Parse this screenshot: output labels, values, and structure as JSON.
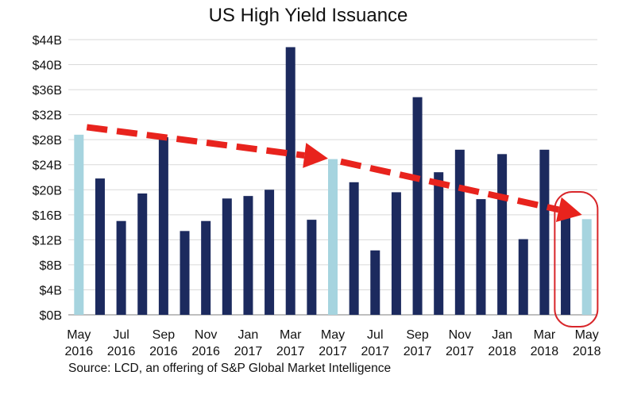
{
  "chart_data": {
    "type": "bar",
    "title": "US High Yield Issuance",
    "source": "Source: LCD, an offering of S&P Global Market Intelligence",
    "y_ticks": [
      "$0B",
      "$4B",
      "$8B",
      "$12B",
      "$16B",
      "$20B",
      "$24B",
      "$28B",
      "$32B",
      "$36B",
      "$40B",
      "$44B"
    ],
    "x_tick_labels": [
      {
        "month": "May",
        "year": "2016"
      },
      {
        "month": "Jul",
        "year": "2016"
      },
      {
        "month": "Sep",
        "year": "2016"
      },
      {
        "month": "Nov",
        "year": "2016"
      },
      {
        "month": "Jan",
        "year": "2017"
      },
      {
        "month": "Mar",
        "year": "2017"
      },
      {
        "month": "May",
        "year": "2017"
      },
      {
        "month": "Jul",
        "year": "2017"
      },
      {
        "month": "Sep",
        "year": "2017"
      },
      {
        "month": "Nov",
        "year": "2017"
      },
      {
        "month": "Jan",
        "year": "2018"
      },
      {
        "month": "Mar",
        "year": "2018"
      },
      {
        "month": "May",
        "year": "2018"
      }
    ],
    "categories": [
      "May 2016",
      "Jun 2016",
      "Jul 2016",
      "Aug 2016",
      "Sep 2016",
      "Oct 2016",
      "Nov 2016",
      "Dec 2016",
      "Jan 2017",
      "Feb 2017",
      "Mar 2017",
      "Apr 2017",
      "May 2017",
      "Jun 2017",
      "Jul 2017",
      "Aug 2017",
      "Sep 2017",
      "Oct 2017",
      "Nov 2017",
      "Dec 2017",
      "Jan 2018",
      "Feb 2018",
      "Mar 2018",
      "Apr 2018",
      "May 2018"
    ],
    "values": [
      28.8,
      21.8,
      15.0,
      19.4,
      28.4,
      13.4,
      15.0,
      18.6,
      19.0,
      20.0,
      42.8,
      15.2,
      24.9,
      21.2,
      10.3,
      19.6,
      34.8,
      22.8,
      26.4,
      18.5,
      25.7,
      12.1,
      26.4,
      16.0,
      15.3
    ],
    "highlighted": [
      true,
      false,
      false,
      false,
      false,
      false,
      false,
      false,
      false,
      false,
      false,
      false,
      true,
      false,
      false,
      false,
      false,
      false,
      false,
      false,
      false,
      false,
      false,
      false,
      true
    ],
    "ylim": [
      0,
      44
    ],
    "grid": true,
    "colors": {
      "bar": "#1c2a5e",
      "highlight": "#a6d4df",
      "arrow": "#e8231d",
      "circle": "#d8262a",
      "grid": "#d9d9d9",
      "axis": "#7f7f7f"
    },
    "annotations": [
      {
        "type": "dashed-arrow",
        "from": {
          "x": "May 2016",
          "y": 30.0
        },
        "to": {
          "x": "May 2017",
          "y": 25.0
        }
      },
      {
        "type": "dashed-arrow",
        "from": {
          "x": "May 2017",
          "y": 24.5
        },
        "to": {
          "x": "May 2018",
          "y": 16.0
        }
      },
      {
        "type": "circle-highlight",
        "x_from": "Apr 2018",
        "x_to": "May 2018"
      }
    ]
  }
}
